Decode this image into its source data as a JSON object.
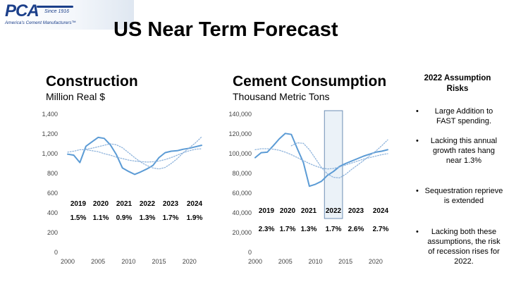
{
  "logo": {
    "name": "PCA",
    "since": "Since 1916",
    "tagline": "America's Cement Manufacturers™"
  },
  "title": "US Near Term Forecast",
  "panels": [
    {
      "title": "Construction",
      "subtitle": "Million Real $"
    },
    {
      "title": "Cement Consumption",
      "subtitle": "Thousand Metric Tons"
    }
  ],
  "risks": {
    "title": "2022 Assumption Risks",
    "items": [
      "Large Addition to FAST spending.",
      "Lacking this annual growth rates hang near 1.3%",
      "Sequestration reprieve is extended",
      "Lacking both these assumptions, the risk of recession rises for 2022."
    ]
  },
  "colors": {
    "series_main": "#5b9bd5",
    "series_dotted": "#8fb4dc",
    "highlight_fill": "#dbe7f3",
    "highlight_stroke": "#6d8fb5"
  },
  "chart_data": [
    {
      "type": "line",
      "title": "Construction",
      "subtitle": "Million Real $",
      "xlim": [
        2000,
        2022
      ],
      "ylim": [
        0,
        1400
      ],
      "xticks": [
        2000,
        2005,
        2010,
        2015,
        2020
      ],
      "yticks": [
        "0",
        "200",
        "400",
        "600",
        "800",
        "1,000",
        "1,200",
        "1,400"
      ],
      "series": [
        {
          "style": "solid",
          "x": [
            2000,
            2001,
            2002,
            2003,
            2004,
            2005,
            2006,
            2007,
            2008,
            2009,
            2010,
            2011,
            2012,
            2013,
            2014,
            2015,
            2016,
            2017,
            2018,
            2019,
            2020,
            2021,
            2022
          ],
          "y": [
            995,
            985,
            910,
            1075,
            1120,
            1165,
            1155,
            1090,
            990,
            855,
            820,
            790,
            815,
            845,
            880,
            960,
            1010,
            1025,
            1030,
            1045,
            1055,
            1070,
            1085
          ]
        },
        {
          "style": "dotted",
          "x": [
            2000,
            2001,
            2002,
            2003,
            2004,
            2005,
            2006,
            2007,
            2008,
            2009,
            2010,
            2011,
            2012,
            2013,
            2014,
            2015,
            2016,
            2017,
            2018,
            2019,
            2020,
            2021,
            2022
          ],
          "y": [
            1015,
            1025,
            1040,
            1040,
            1030,
            1020,
            1000,
            985,
            965,
            950,
            935,
            925,
            920,
            915,
            918,
            925,
            940,
            960,
            985,
            1010,
            1030,
            1045,
            1050
          ]
        },
        {
          "style": "dotted",
          "x": [
            2003,
            2004,
            2005,
            2006,
            2007,
            2008,
            2009,
            2010,
            2011,
            2012,
            2013,
            2014,
            2015,
            2016,
            2017,
            2018,
            2019,
            2020,
            2021,
            2022
          ],
          "y": [
            1045,
            1055,
            1070,
            1085,
            1100,
            1090,
            1060,
            1010,
            960,
            915,
            880,
            855,
            845,
            860,
            900,
            950,
            1010,
            1060,
            1110,
            1170
          ]
        }
      ],
      "forecast_years": [
        "2019",
        "2020",
        "2021",
        "2022",
        "2023",
        "2024"
      ],
      "forecast_growth": [
        "1.5%",
        "1.1%",
        "0.9%",
        "1.3%",
        "1.7%",
        "1.9%"
      ]
    },
    {
      "type": "line",
      "title": "Cement Consumption",
      "subtitle": "Thousand Metric Tons",
      "xlim": [
        2000,
        2022
      ],
      "ylim": [
        0,
        140000
      ],
      "xticks": [
        2000,
        2005,
        2010,
        2015,
        2020
      ],
      "yticks": [
        "0",
        "20,000",
        "40,000",
        "60,000",
        "80,000",
        "100,000",
        "120,000",
        "140,000"
      ],
      "highlight_x": [
        2011.5,
        2014.5
      ],
      "series": [
        {
          "style": "solid",
          "x": [
            2000,
            2001,
            2002,
            2003,
            2004,
            2005,
            2006,
            2007,
            2008,
            2009,
            2010,
            2011,
            2012,
            2013,
            2014,
            2015,
            2016,
            2017,
            2018,
            2019,
            2020,
            2021,
            2022
          ],
          "y": [
            96000,
            101000,
            101500,
            108000,
            115000,
            120500,
            119500,
            105000,
            91000,
            67000,
            69000,
            72000,
            78000,
            82000,
            87000,
            90000,
            92500,
            95000,
            97500,
            99500,
            101500,
            102500,
            104000
          ]
        },
        {
          "style": "dotted",
          "x": [
            2000,
            2001,
            2002,
            2003,
            2004,
            2005,
            2006,
            2007,
            2008,
            2009,
            2010,
            2011,
            2012,
            2013,
            2014,
            2015,
            2016,
            2017,
            2018,
            2019,
            2020,
            2021,
            2022
          ],
          "y": [
            104000,
            105000,
            105000,
            104500,
            103500,
            101500,
            99000,
            96000,
            93000,
            90000,
            87500,
            85500,
            84500,
            85000,
            86500,
            88500,
            90500,
            92500,
            94500,
            96000,
            97500,
            99000,
            100000
          ]
        },
        {
          "style": "dotted",
          "x": [
            2006,
            2007,
            2008,
            2009,
            2010,
            2011,
            2012,
            2013,
            2014,
            2015,
            2016,
            2017,
            2018,
            2019,
            2020,
            2021,
            2022
          ],
          "y": [
            108000,
            111000,
            110500,
            104000,
            95000,
            86000,
            79500,
            76000,
            75500,
            79000,
            84000,
            88500,
            93000,
            98000,
            102500,
            108000,
            114000
          ]
        }
      ],
      "forecast_years": [
        "2019",
        "2020",
        "2021",
        "2022",
        "2023",
        "2024"
      ],
      "forecast_growth": [
        "2.3%",
        "1.7%",
        "1.3%",
        "1.7%",
        "2.6%",
        "2.7%"
      ]
    }
  ]
}
